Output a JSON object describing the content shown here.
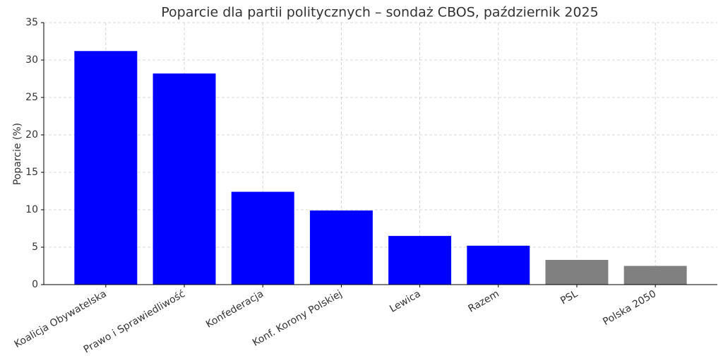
{
  "chart_data": {
    "type": "bar",
    "title": "Poparcie dla partii politycznych – sondaż CBOS, październik 2025",
    "y_label": "Poparcie (%)",
    "categories": [
      "Koalicja Obywatelska",
      "Prawo i Sprawiedliwość",
      "Konfederacja",
      "Konf. Korony Polskiej",
      "Lewica",
      "Razem",
      "PSL",
      "Polska 2050"
    ],
    "values": [
      31.2,
      28.2,
      12.4,
      9.9,
      6.5,
      5.2,
      3.3,
      2.5
    ],
    "colors": [
      "#0000ff",
      "#0000ff",
      "#0000ff",
      "#0000ff",
      "#0000ff",
      "#0000ff",
      "#808080",
      "#808080"
    ],
    "ylim": [
      0,
      35
    ],
    "yticks": [
      0,
      5,
      10,
      15,
      20,
      25,
      30,
      35
    ],
    "grid": true
  }
}
